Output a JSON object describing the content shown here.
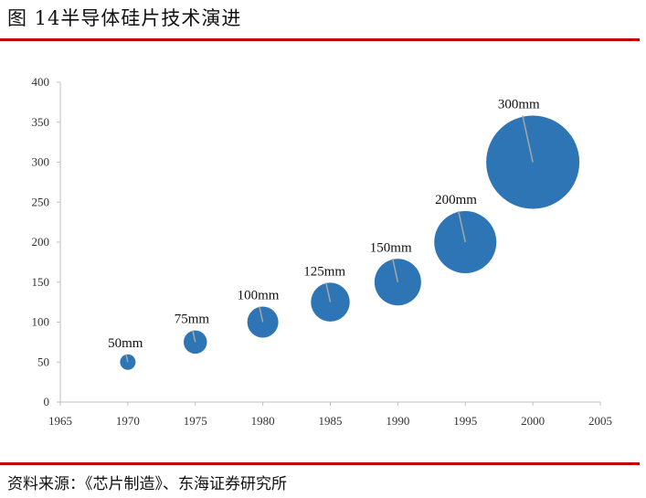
{
  "header": {
    "title": "图 14半导体硅片技术演进"
  },
  "footer": {
    "source": "资料来源：《芯片制造》、东海证券研究所"
  },
  "chart_data": {
    "type": "scatter",
    "title": "图 14半导体硅片技术演进",
    "x": [
      1970,
      1975,
      1980,
      1985,
      1990,
      1995,
      2000
    ],
    "y": [
      50,
      75,
      100,
      125,
      150,
      200,
      300
    ],
    "labels": [
      "50mm",
      "75mm",
      "100mm",
      "125mm",
      "150mm",
      "200mm",
      "300mm"
    ],
    "xlim": [
      1965,
      2005
    ],
    "ylim": [
      0,
      400
    ],
    "xticks": [
      1965,
      1970,
      1975,
      1980,
      1985,
      1990,
      1995,
      2000,
      2005
    ],
    "yticks": [
      0,
      50,
      100,
      150,
      200,
      250,
      300,
      350,
      400
    ],
    "xlabel": "",
    "ylabel": "",
    "grid": false,
    "legend": "none",
    "bubble_color": "#2e75b6"
  }
}
